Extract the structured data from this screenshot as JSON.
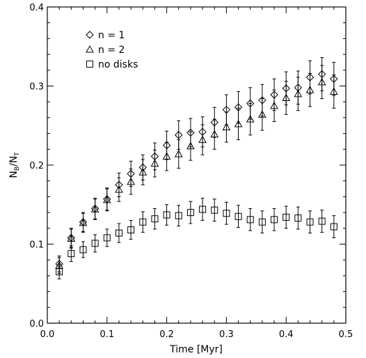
{
  "chart_data": {
    "type": "scatter",
    "xlabel": "Time [Myr]",
    "ylabel_main": "N",
    "ylabel_num_sub": "B",
    "ylabel_den": "/N",
    "ylabel_den_sub": "T",
    "xlim": [
      0.0,
      0.5
    ],
    "ylim": [
      0.0,
      0.4
    ],
    "xticks": [
      "0.0",
      "0.1",
      "0.2",
      "0.3",
      "0.4",
      "0.5"
    ],
    "yticks": [
      "0.0",
      "0.1",
      "0.2",
      "0.3",
      "0.4"
    ],
    "legend_position": "top-left",
    "series": [
      {
        "name": "n = 1",
        "marker": "diamond",
        "x": [
          0.02,
          0.04,
          0.06,
          0.08,
          0.1,
          0.12,
          0.14,
          0.16,
          0.18,
          0.2,
          0.22,
          0.24,
          0.26,
          0.28,
          0.3,
          0.32,
          0.34,
          0.36,
          0.38,
          0.4,
          0.42,
          0.44,
          0.46,
          0.48
        ],
        "y": [
          0.075,
          0.108,
          0.128,
          0.145,
          0.157,
          0.175,
          0.189,
          0.197,
          0.211,
          0.225,
          0.238,
          0.241,
          0.242,
          0.254,
          0.27,
          0.273,
          0.278,
          0.282,
          0.289,
          0.297,
          0.298,
          0.311,
          0.315,
          0.309
        ],
        "err": [
          0.01,
          0.012,
          0.012,
          0.013,
          0.014,
          0.015,
          0.016,
          0.016,
          0.017,
          0.018,
          0.018,
          0.018,
          0.019,
          0.019,
          0.019,
          0.02,
          0.02,
          0.02,
          0.02,
          0.021,
          0.021,
          0.021,
          0.021,
          0.021
        ]
      },
      {
        "name": "n = 2",
        "marker": "triangle",
        "x": [
          0.02,
          0.04,
          0.06,
          0.08,
          0.1,
          0.12,
          0.14,
          0.16,
          0.18,
          0.2,
          0.22,
          0.24,
          0.26,
          0.28,
          0.3,
          0.32,
          0.34,
          0.36,
          0.38,
          0.4,
          0.42,
          0.44,
          0.46,
          0.48
        ],
        "y": [
          0.073,
          0.107,
          0.127,
          0.144,
          0.156,
          0.169,
          0.179,
          0.191,
          0.202,
          0.211,
          0.214,
          0.224,
          0.232,
          0.239,
          0.248,
          0.252,
          0.258,
          0.264,
          0.275,
          0.285,
          0.29,
          0.295,
          0.305,
          0.293
        ],
        "err": [
          0.01,
          0.012,
          0.012,
          0.013,
          0.014,
          0.015,
          0.016,
          0.016,
          0.017,
          0.018,
          0.018,
          0.018,
          0.019,
          0.019,
          0.019,
          0.02,
          0.02,
          0.02,
          0.02,
          0.021,
          0.021,
          0.021,
          0.021,
          0.021
        ]
      },
      {
        "name": "no disks",
        "marker": "square",
        "x": [
          0.02,
          0.04,
          0.06,
          0.08,
          0.1,
          0.12,
          0.14,
          0.16,
          0.18,
          0.2,
          0.22,
          0.24,
          0.26,
          0.28,
          0.3,
          0.32,
          0.34,
          0.36,
          0.38,
          0.4,
          0.42,
          0.44,
          0.46,
          0.48
        ],
        "y": [
          0.065,
          0.088,
          0.093,
          0.101,
          0.108,
          0.114,
          0.118,
          0.128,
          0.132,
          0.137,
          0.136,
          0.14,
          0.144,
          0.143,
          0.139,
          0.135,
          0.131,
          0.128,
          0.131,
          0.134,
          0.133,
          0.128,
          0.129,
          0.122
        ],
        "err": [
          0.009,
          0.01,
          0.01,
          0.011,
          0.011,
          0.012,
          0.012,
          0.013,
          0.013,
          0.013,
          0.013,
          0.014,
          0.014,
          0.014,
          0.014,
          0.014,
          0.014,
          0.014,
          0.014,
          0.014,
          0.014,
          0.014,
          0.014,
          0.014
        ]
      }
    ]
  }
}
